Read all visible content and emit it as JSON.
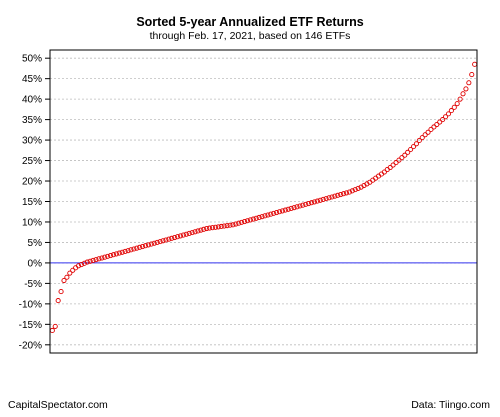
{
  "chart_data": {
    "type": "scatter",
    "title": "Sorted 5-year Annualized ETF Returns",
    "subtitle": "through Feb. 17, 2021, based on 146 ETFs",
    "xlabel": "",
    "ylabel": "",
    "ylim": [
      -22,
      52
    ],
    "y_ticks": [
      50,
      45,
      40,
      35,
      30,
      25,
      20,
      15,
      10,
      5,
      0,
      -5,
      -10,
      -15,
      -20
    ],
    "y_tick_labels": [
      "50%",
      "45%",
      "40%",
      "35%",
      "30%",
      "25%",
      "20%",
      "15%",
      "10%",
      "5%",
      "0%",
      "-5%",
      "-10%",
      "-15%",
      "-20%"
    ],
    "grid": true,
    "reference_line": {
      "y": 0,
      "color": "#3333ee"
    },
    "point_color": "#e00000",
    "x": [
      1,
      2,
      3,
      4,
      5,
      6,
      7,
      8,
      9,
      10,
      11,
      12,
      13,
      14,
      15,
      16,
      17,
      18,
      19,
      20,
      21,
      22,
      23,
      24,
      25,
      26,
      27,
      28,
      29,
      30,
      31,
      32,
      33,
      34,
      35,
      36,
      37,
      38,
      39,
      40,
      41,
      42,
      43,
      44,
      45,
      46,
      47,
      48,
      49,
      50,
      51,
      52,
      53,
      54,
      55,
      56,
      57,
      58,
      59,
      60,
      61,
      62,
      63,
      64,
      65,
      66,
      67,
      68,
      69,
      70,
      71,
      72,
      73,
      74,
      75,
      76,
      77,
      78,
      79,
      80,
      81,
      82,
      83,
      84,
      85,
      86,
      87,
      88,
      89,
      90,
      91,
      92,
      93,
      94,
      95,
      96,
      97,
      98,
      99,
      100,
      101,
      102,
      103,
      104,
      105,
      106,
      107,
      108,
      109,
      110,
      111,
      112,
      113,
      114,
      115,
      116,
      117,
      118,
      119,
      120,
      121,
      122,
      123,
      124,
      125,
      126,
      127,
      128,
      129,
      130,
      131,
      132,
      133,
      134,
      135,
      136,
      137,
      138,
      139,
      140,
      141,
      142,
      143,
      144,
      145,
      146
    ],
    "y": [
      -16.5,
      -15.5,
      -9.2,
      -7.0,
      -4.3,
      -3.5,
      -2.5,
      -1.8,
      -1.2,
      -0.7,
      -0.4,
      -0.1,
      0.2,
      0.4,
      0.6,
      0.8,
      1.0,
      1.2,
      1.4,
      1.6,
      1.8,
      2.0,
      2.2,
      2.4,
      2.6,
      2.8,
      3.0,
      3.2,
      3.4,
      3.6,
      3.8,
      4.0,
      4.2,
      4.4,
      4.6,
      4.8,
      5.0,
      5.2,
      5.4,
      5.6,
      5.8,
      6.0,
      6.2,
      6.4,
      6.6,
      6.8,
      7.0,
      7.2,
      7.4,
      7.6,
      7.8,
      8.0,
      8.2,
      8.4,
      8.5,
      8.6,
      8.7,
      8.8,
      8.9,
      9.0,
      9.1,
      9.2,
      9.3,
      9.5,
      9.7,
      9.9,
      10.1,
      10.3,
      10.5,
      10.7,
      10.9,
      11.1,
      11.3,
      11.5,
      11.7,
      11.9,
      12.1,
      12.3,
      12.5,
      12.7,
      12.9,
      13.1,
      13.3,
      13.5,
      13.7,
      13.9,
      14.1,
      14.3,
      14.5,
      14.7,
      14.9,
      15.1,
      15.3,
      15.5,
      15.7,
      15.9,
      16.1,
      16.3,
      16.5,
      16.7,
      16.9,
      17.1,
      17.3,
      17.6,
      17.9,
      18.2,
      18.5,
      18.9,
      19.3,
      19.7,
      20.2,
      20.7,
      21.2,
      21.7,
      22.2,
      22.8,
      23.3,
      23.9,
      24.5,
      25.1,
      25.7,
      26.3,
      27.0,
      27.7,
      28.4,
      29.1,
      29.9,
      30.6,
      31.3,
      31.9,
      32.6,
      33.2,
      33.8,
      34.4,
      35.0,
      35.7,
      36.4,
      37.2,
      38.0,
      38.9,
      40.0,
      41.3,
      42.5,
      44.0,
      46.0,
      48.5
    ]
  },
  "footer": {
    "left": "CapitalSpectator.com",
    "right": "Data: Tiingo.com"
  }
}
